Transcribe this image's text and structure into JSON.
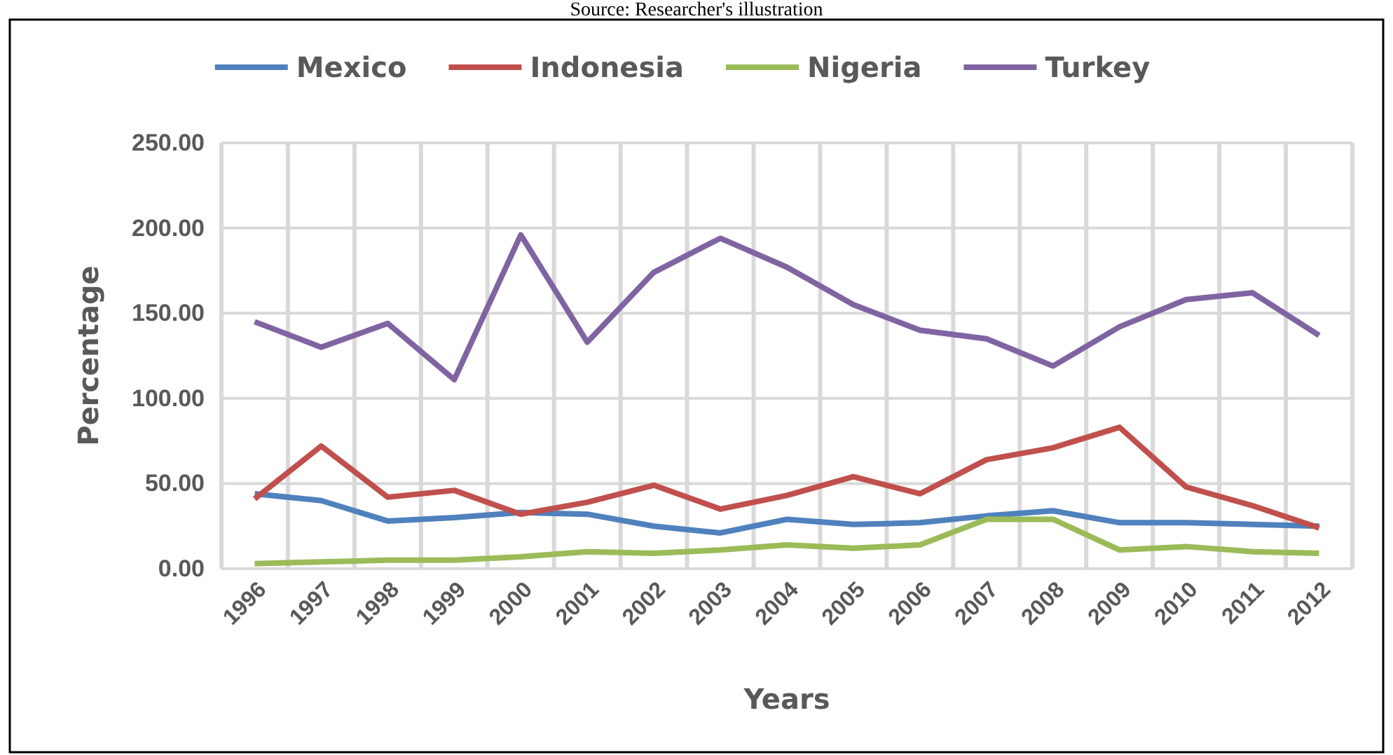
{
  "chart_data": {
    "type": "line",
    "xlabel": "Years",
    "ylabel": "Percentage",
    "annotations": [
      "Source: Researcher's illustration"
    ],
    "categories": [
      "1996",
      "1997",
      "1998",
      "1999",
      "2000",
      "2001",
      "2002",
      "2003",
      "2004",
      "2005",
      "2006",
      "2007",
      "2008",
      "2009",
      "2010",
      "2011",
      "2012"
    ],
    "series": [
      {
        "name": "Mexico",
        "color": "#4f81bd",
        "values": [
          44,
          40,
          28,
          30,
          33,
          32,
          25,
          21,
          29,
          26,
          27,
          31,
          34,
          27,
          27,
          26,
          25
        ]
      },
      {
        "name": "Indonesia",
        "color": "#c0504d",
        "values": [
          41,
          72,
          42,
          46,
          32,
          39,
          49,
          35,
          43,
          54,
          44,
          64,
          71,
          83,
          48,
          37,
          24
        ]
      },
      {
        "name": "Nigeria",
        "color": "#9bbb59",
        "values": [
          3,
          4,
          5,
          5,
          7,
          10,
          9,
          11,
          14,
          12,
          14,
          29,
          29,
          11,
          13,
          10,
          9
        ]
      },
      {
        "name": "Turkey",
        "color": "#8064a2",
        "values": [
          145,
          130,
          144,
          111,
          196,
          133,
          174,
          194,
          177,
          155,
          140,
          135,
          119,
          142,
          158,
          162,
          137
        ]
      }
    ],
    "ylim": [
      0,
      250
    ],
    "yticks": [
      {
        "value": 0,
        "label": "0.00"
      },
      {
        "value": 50,
        "label": "50.00"
      },
      {
        "value": 100,
        "label": "100.00"
      },
      {
        "value": 150,
        "label": "150.00"
      },
      {
        "value": 200,
        "label": "200.00"
      },
      {
        "value": 250,
        "label": "250.00"
      }
    ],
    "grid": true,
    "legend": "top",
    "marker": "none",
    "line_style": "solid"
  }
}
